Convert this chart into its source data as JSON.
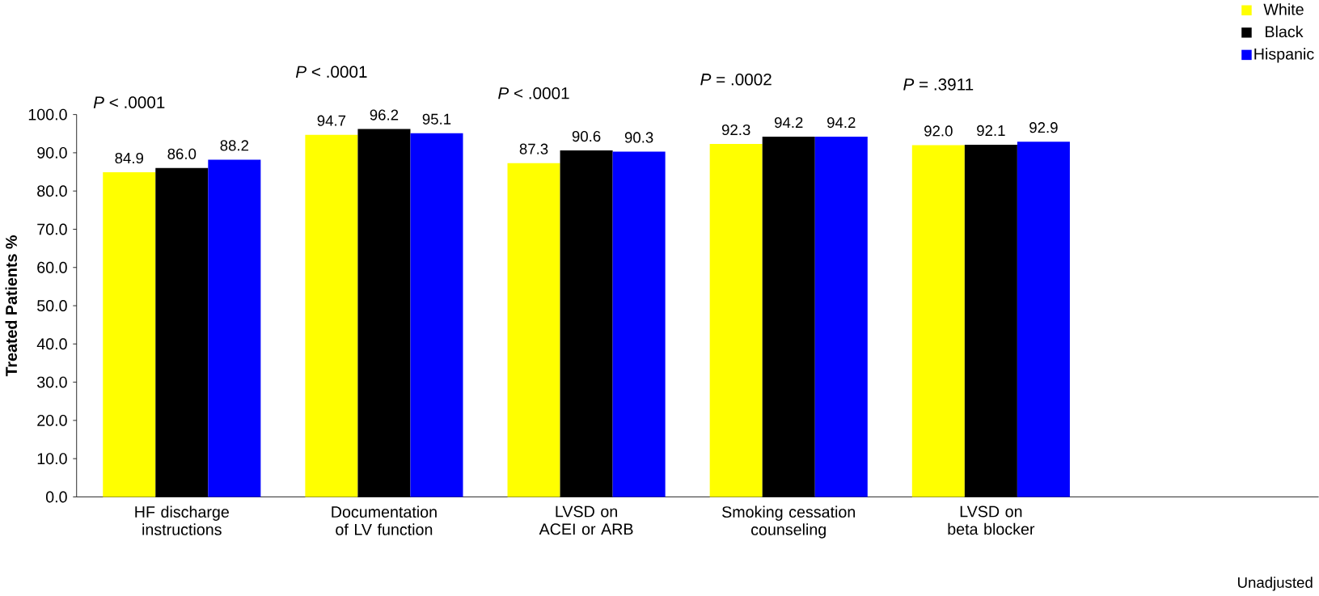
{
  "chart_data": {
    "type": "bar",
    "categories": [
      "HF discharge instructions",
      "Documentation of LV function",
      "LVSD on ACEI or ARB",
      "Smoking cessation counseling",
      "LVSD on beta blocker"
    ],
    "series": [
      {
        "name": "White",
        "color": "#ffff00",
        "values": [
          84.9,
          94.7,
          87.3,
          92.3,
          92.0
        ],
        "value_labels": [
          "84.9",
          "94.7",
          "87.3",
          "92.3",
          "92.0"
        ]
      },
      {
        "name": "Black",
        "color": "#000000",
        "values": [
          86.0,
          96.2,
          90.6,
          94.2,
          92.1
        ],
        "value_labels": [
          "86.0",
          "96.2",
          "90.6",
          "94.2",
          "92.1"
        ]
      },
      {
        "name": "Hispanic",
        "color": "#0000ff",
        "values": [
          88.2,
          95.1,
          90.3,
          94.2,
          92.9
        ],
        "value_labels": [
          "88.2",
          "95.1",
          "90.3",
          "94.2",
          "92.9"
        ]
      }
    ],
    "ylabel": "Treated Patients %",
    "ylim": [
      0,
      100
    ],
    "yticks": [
      {
        "value": 0,
        "label": "0.0"
      },
      {
        "value": 10,
        "label": "10.0"
      },
      {
        "value": 20,
        "label": "20.0"
      },
      {
        "value": 30,
        "label": "30.0"
      },
      {
        "value": 40,
        "label": "40.0"
      },
      {
        "value": 50,
        "label": "50.0"
      },
      {
        "value": 60,
        "label": "60.0"
      },
      {
        "value": 70,
        "label": "70.0"
      },
      {
        "value": 80,
        "label": "80.0"
      },
      {
        "value": 90,
        "label": "90.0"
      },
      {
        "value": 100,
        "label": "100.0"
      }
    ],
    "legend": "top right",
    "grid": false,
    "annotations": [
      "*P* < .0001",
      "*P* < .0001",
      "*P* < .0001",
      "*P* = .0002",
      "*P* = .3911",
      "Unadjusted"
    ]
  }
}
